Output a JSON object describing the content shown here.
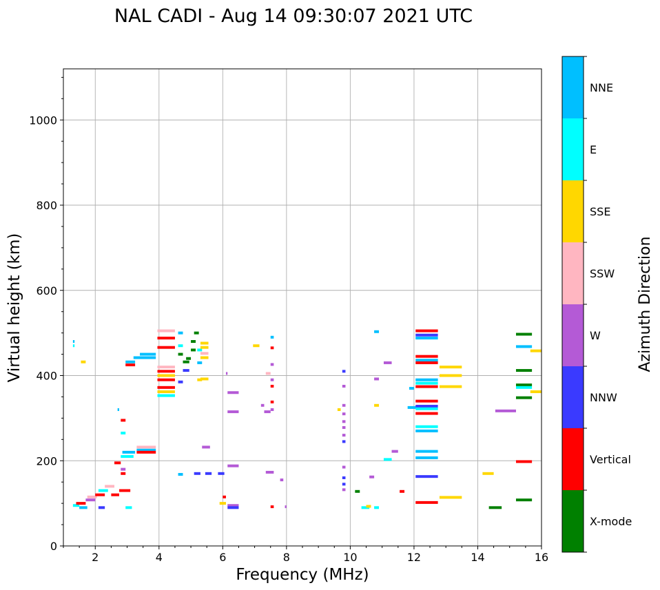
{
  "chart_data": {
    "type": "scatter",
    "title": "NAL CADI - Aug 14 09:30:07 2021 UTC",
    "xlabel": "Frequency (MHz)",
    "ylabel": "Virtual height (km)",
    "xlim": [
      1,
      16
    ],
    "ylim": [
      0,
      1120
    ],
    "x_ticks": [
      2,
      4,
      6,
      8,
      10,
      12,
      14,
      16
    ],
    "y_ticks": [
      0,
      200,
      400,
      600,
      800,
      1000
    ],
    "grid": true,
    "colorbar": {
      "label": "Azimuth Direction",
      "categories": [
        {
          "name": "X-mode",
          "color": "#008000"
        },
        {
          "name": "Vertical",
          "color": "#ff0000"
        },
        {
          "name": "NNW",
          "color": "#3a3aff"
        },
        {
          "name": "W",
          "color": "#b45ad6"
        },
        {
          "name": "SSW",
          "color": "#ffb6c1"
        },
        {
          "name": "SSE",
          "color": "#ffd700"
        },
        {
          "name": "E",
          "color": "#00ffff"
        },
        {
          "name": "NNE",
          "color": "#00bfff"
        }
      ]
    },
    "segments": [
      {
        "x0": 1.3,
        "x1": 1.35,
        "y": 480,
        "c": "NNE"
      },
      {
        "x0": 1.3,
        "x1": 1.35,
        "y": 470,
        "c": "E"
      },
      {
        "x0": 1.55,
        "x1": 1.7,
        "y": 432,
        "c": "SSE"
      },
      {
        "x0": 1.3,
        "x1": 1.5,
        "y": 95,
        "c": "E"
      },
      {
        "x0": 1.4,
        "x1": 1.7,
        "y": 100,
        "c": "Vertical"
      },
      {
        "x0": 1.5,
        "x1": 1.75,
        "y": 90,
        "c": "NNE"
      },
      {
        "x0": 1.7,
        "x1": 2.0,
        "y": 108,
        "c": "W"
      },
      {
        "x0": 1.75,
        "x1": 2.05,
        "y": 115,
        "c": "SSW"
      },
      {
        "x0": 2.0,
        "x1": 2.3,
        "y": 120,
        "c": "Vertical"
      },
      {
        "x0": 2.1,
        "x1": 2.4,
        "y": 130,
        "c": "E"
      },
      {
        "x0": 2.1,
        "x1": 2.3,
        "y": 90,
        "c": "NNW"
      },
      {
        "x0": 2.3,
        "x1": 2.6,
        "y": 140,
        "c": "SSW"
      },
      {
        "x0": 2.5,
        "x1": 2.75,
        "y": 120,
        "c": "Vertical"
      },
      {
        "x0": 2.6,
        "x1": 2.8,
        "y": 195,
        "c": "Vertical"
      },
      {
        "x0": 2.7,
        "x1": 2.75,
        "y": 320,
        "c": "NNE"
      },
      {
        "x0": 2.8,
        "x1": 2.95,
        "y": 295,
        "c": "Vertical"
      },
      {
        "x0": 2.8,
        "x1": 2.95,
        "y": 265,
        "c": "E"
      },
      {
        "x0": 2.8,
        "x1": 2.95,
        "y": 180,
        "c": "W"
      },
      {
        "x0": 2.8,
        "x1": 2.95,
        "y": 170,
        "c": "Vertical"
      },
      {
        "x0": 2.75,
        "x1": 3.1,
        "y": 130,
        "c": "Vertical"
      },
      {
        "x0": 2.95,
        "x1": 3.15,
        "y": 90,
        "c": "E"
      },
      {
        "x0": 2.8,
        "x1": 3.2,
        "y": 210,
        "c": "E"
      },
      {
        "x0": 2.85,
        "x1": 3.25,
        "y": 220,
        "c": "NNE"
      },
      {
        "x0": 3.3,
        "x1": 3.9,
        "y": 232,
        "c": "SSW"
      },
      {
        "x0": 3.3,
        "x1": 3.9,
        "y": 225,
        "c": "NNE"
      },
      {
        "x0": 3.3,
        "x1": 3.9,
        "y": 220,
        "c": "Vertical"
      },
      {
        "x0": 2.95,
        "x1": 3.25,
        "y": 432,
        "c": "NNE"
      },
      {
        "x0": 2.95,
        "x1": 3.25,
        "y": 425,
        "c": "Vertical"
      },
      {
        "x0": 3.4,
        "x1": 3.9,
        "y": 450,
        "c": "NNE"
      },
      {
        "x0": 3.2,
        "x1": 3.9,
        "y": 442,
        "c": "NNE"
      },
      {
        "x0": 3.95,
        "x1": 4.5,
        "y": 505,
        "c": "SSW"
      },
      {
        "x0": 3.95,
        "x1": 4.5,
        "y": 488,
        "c": "Vertical"
      },
      {
        "x0": 3.95,
        "x1": 4.5,
        "y": 466,
        "c": "Vertical"
      },
      {
        "x0": 3.95,
        "x1": 4.5,
        "y": 420,
        "c": "SSW"
      },
      {
        "x0": 3.95,
        "x1": 4.5,
        "y": 410,
        "c": "Vertical"
      },
      {
        "x0": 3.95,
        "x1": 4.5,
        "y": 400,
        "c": "SSE"
      },
      {
        "x0": 3.95,
        "x1": 4.5,
        "y": 390,
        "c": "Vertical"
      },
      {
        "x0": 3.95,
        "x1": 4.5,
        "y": 372,
        "c": "Vertical"
      },
      {
        "x0": 3.95,
        "x1": 4.5,
        "y": 362,
        "c": "SSE"
      },
      {
        "x0": 3.95,
        "x1": 4.5,
        "y": 353,
        "c": "E"
      },
      {
        "x0": 4.6,
        "x1": 4.75,
        "y": 500,
        "c": "NNE"
      },
      {
        "x0": 4.6,
        "x1": 4.75,
        "y": 470,
        "c": "E"
      },
      {
        "x0": 4.6,
        "x1": 4.75,
        "y": 450,
        "c": "X-mode"
      },
      {
        "x0": 4.6,
        "x1": 4.75,
        "y": 385,
        "c": "NNW"
      },
      {
        "x0": 4.6,
        "x1": 4.75,
        "y": 168,
        "c": "NNE"
      },
      {
        "x0": 4.75,
        "x1": 4.95,
        "y": 432,
        "c": "X-mode"
      },
      {
        "x0": 4.75,
        "x1": 4.95,
        "y": 412,
        "c": "NNW"
      },
      {
        "x0": 4.85,
        "x1": 5.0,
        "y": 440,
        "c": "X-mode"
      },
      {
        "x0": 5.0,
        "x1": 5.15,
        "y": 480,
        "c": "X-mode"
      },
      {
        "x0": 5.0,
        "x1": 5.15,
        "y": 460,
        "c": "X-mode"
      },
      {
        "x0": 5.1,
        "x1": 5.25,
        "y": 500,
        "c": "X-mode"
      },
      {
        "x0": 5.2,
        "x1": 5.35,
        "y": 460,
        "c": "E"
      },
      {
        "x0": 5.2,
        "x1": 5.35,
        "y": 430,
        "c": "NNE"
      },
      {
        "x0": 5.2,
        "x1": 5.35,
        "y": 390,
        "c": "SSE"
      },
      {
        "x0": 5.3,
        "x1": 5.55,
        "y": 476,
        "c": "SSE"
      },
      {
        "x0": 5.3,
        "x1": 5.55,
        "y": 466,
        "c": "SSE"
      },
      {
        "x0": 5.3,
        "x1": 5.55,
        "y": 452,
        "c": "SSW"
      },
      {
        "x0": 5.3,
        "x1": 5.55,
        "y": 442,
        "c": "SSE"
      },
      {
        "x0": 5.3,
        "x1": 5.55,
        "y": 392,
        "c": "SSE"
      },
      {
        "x0": 5.35,
        "x1": 5.6,
        "y": 232,
        "c": "W"
      },
      {
        "x0": 5.1,
        "x1": 5.3,
        "y": 170,
        "c": "NNW"
      },
      {
        "x0": 5.45,
        "x1": 5.65,
        "y": 170,
        "c": "NNW"
      },
      {
        "x0": 5.85,
        "x1": 6.05,
        "y": 170,
        "c": "NNW"
      },
      {
        "x0": 5.9,
        "x1": 6.1,
        "y": 100,
        "c": "SSE"
      },
      {
        "x0": 6.0,
        "x1": 6.1,
        "y": 115,
        "c": "Vertical"
      },
      {
        "x0": 6.15,
        "x1": 6.5,
        "y": 95,
        "c": "W"
      },
      {
        "x0": 6.15,
        "x1": 6.5,
        "y": 90,
        "c": "NNW"
      },
      {
        "x0": 6.15,
        "x1": 6.5,
        "y": 188,
        "c": "W"
      },
      {
        "x0": 6.15,
        "x1": 6.5,
        "y": 360,
        "c": "W"
      },
      {
        "x0": 6.15,
        "x1": 6.5,
        "y": 315,
        "c": "W"
      },
      {
        "x0": 6.1,
        "x1": 6.15,
        "y": 405,
        "c": "W"
      },
      {
        "x0": 6.95,
        "x1": 7.15,
        "y": 470,
        "c": "SSE"
      },
      {
        "x0": 7.2,
        "x1": 7.3,
        "y": 330,
        "c": "W"
      },
      {
        "x0": 7.35,
        "x1": 7.5,
        "y": 405,
        "c": "SSW"
      },
      {
        "x0": 7.35,
        "x1": 7.6,
        "y": 173,
        "c": "W"
      },
      {
        "x0": 7.3,
        "x1": 7.5,
        "y": 315,
        "c": "W"
      },
      {
        "x0": 7.5,
        "x1": 7.6,
        "y": 490,
        "c": "NNE"
      },
      {
        "x0": 7.5,
        "x1": 7.6,
        "y": 465,
        "c": "Vertical"
      },
      {
        "x0": 7.5,
        "x1": 7.6,
        "y": 426,
        "c": "W"
      },
      {
        "x0": 7.5,
        "x1": 7.6,
        "y": 390,
        "c": "W"
      },
      {
        "x0": 7.5,
        "x1": 7.6,
        "y": 375,
        "c": "Vertical"
      },
      {
        "x0": 7.5,
        "x1": 7.6,
        "y": 338,
        "c": "Vertical"
      },
      {
        "x0": 7.5,
        "x1": 7.6,
        "y": 320,
        "c": "W"
      },
      {
        "x0": 7.5,
        "x1": 7.6,
        "y": 92,
        "c": "Vertical"
      },
      {
        "x0": 7.8,
        "x1": 7.9,
        "y": 155,
        "c": "W"
      },
      {
        "x0": 7.95,
        "x1": 8.0,
        "y": 92,
        "c": "W"
      },
      {
        "x0": 9.6,
        "x1": 9.7,
        "y": 320,
        "c": "SSE"
      },
      {
        "x0": 9.75,
        "x1": 9.85,
        "y": 410,
        "c": "NNW"
      },
      {
        "x0": 9.75,
        "x1": 9.85,
        "y": 375,
        "c": "W"
      },
      {
        "x0": 9.75,
        "x1": 9.85,
        "y": 330,
        "c": "W"
      },
      {
        "x0": 9.75,
        "x1": 9.85,
        "y": 310,
        "c": "W"
      },
      {
        "x0": 9.75,
        "x1": 9.85,
        "y": 292,
        "c": "W"
      },
      {
        "x0": 9.75,
        "x1": 9.85,
        "y": 278,
        "c": "W"
      },
      {
        "x0": 9.75,
        "x1": 9.85,
        "y": 260,
        "c": "W"
      },
      {
        "x0": 9.75,
        "x1": 9.85,
        "y": 245,
        "c": "NNW"
      },
      {
        "x0": 9.75,
        "x1": 9.85,
        "y": 185,
        "c": "W"
      },
      {
        "x0": 9.75,
        "x1": 9.85,
        "y": 160,
        "c": "NNW"
      },
      {
        "x0": 9.75,
        "x1": 9.85,
        "y": 145,
        "c": "NNW"
      },
      {
        "x0": 9.75,
        "x1": 9.85,
        "y": 132,
        "c": "W"
      },
      {
        "x0": 10.15,
        "x1": 10.3,
        "y": 128,
        "c": "X-mode"
      },
      {
        "x0": 10.35,
        "x1": 10.6,
        "y": 90,
        "c": "E"
      },
      {
        "x0": 10.5,
        "x1": 10.65,
        "y": 93,
        "c": "SSE"
      },
      {
        "x0": 10.6,
        "x1": 10.75,
        "y": 162,
        "c": "W"
      },
      {
        "x0": 10.75,
        "x1": 10.9,
        "y": 90,
        "c": "E"
      },
      {
        "x0": 10.75,
        "x1": 10.9,
        "y": 330,
        "c": "SSE"
      },
      {
        "x0": 10.75,
        "x1": 10.9,
        "y": 392,
        "c": "W"
      },
      {
        "x0": 10.75,
        "x1": 10.9,
        "y": 503,
        "c": "NNE"
      },
      {
        "x0": 11.05,
        "x1": 11.3,
        "y": 430,
        "c": "W"
      },
      {
        "x0": 11.05,
        "x1": 11.3,
        "y": 203,
        "c": "E"
      },
      {
        "x0": 11.3,
        "x1": 11.5,
        "y": 222,
        "c": "W"
      },
      {
        "x0": 11.55,
        "x1": 11.7,
        "y": 128,
        "c": "Vertical"
      },
      {
        "x0": 11.85,
        "x1": 12.0,
        "y": 370,
        "c": "NNE"
      },
      {
        "x0": 11.8,
        "x1": 12.1,
        "y": 325,
        "c": "NNE"
      },
      {
        "x0": 12.05,
        "x1": 12.75,
        "y": 505,
        "c": "Vertical"
      },
      {
        "x0": 12.05,
        "x1": 12.75,
        "y": 495,
        "c": "NNW"
      },
      {
        "x0": 12.05,
        "x1": 12.75,
        "y": 488,
        "c": "NNE"
      },
      {
        "x0": 12.05,
        "x1": 12.75,
        "y": 445,
        "c": "Vertical"
      },
      {
        "x0": 12.05,
        "x1": 12.75,
        "y": 436,
        "c": "NNE"
      },
      {
        "x0": 12.05,
        "x1": 12.75,
        "y": 430,
        "c": "Vertical"
      },
      {
        "x0": 12.05,
        "x1": 12.75,
        "y": 390,
        "c": "NNE"
      },
      {
        "x0": 12.05,
        "x1": 12.75,
        "y": 382,
        "c": "E"
      },
      {
        "x0": 12.05,
        "x1": 12.75,
        "y": 374,
        "c": "Vertical"
      },
      {
        "x0": 12.05,
        "x1": 12.75,
        "y": 340,
        "c": "Vertical"
      },
      {
        "x0": 12.05,
        "x1": 12.75,
        "y": 328,
        "c": "NNW"
      },
      {
        "x0": 12.05,
        "x1": 12.75,
        "y": 322,
        "c": "E"
      },
      {
        "x0": 12.05,
        "x1": 12.75,
        "y": 311,
        "c": "Vertical"
      },
      {
        "x0": 12.05,
        "x1": 12.75,
        "y": 280,
        "c": "E"
      },
      {
        "x0": 12.05,
        "x1": 12.75,
        "y": 270,
        "c": "NNE"
      },
      {
        "x0": 12.05,
        "x1": 12.75,
        "y": 222,
        "c": "NNE"
      },
      {
        "x0": 12.05,
        "x1": 12.75,
        "y": 207,
        "c": "NNE"
      },
      {
        "x0": 12.05,
        "x1": 12.75,
        "y": 163,
        "c": "NNW"
      },
      {
        "x0": 12.05,
        "x1": 12.75,
        "y": 102,
        "c": "Vertical"
      },
      {
        "x0": 12.8,
        "x1": 13.5,
        "y": 420,
        "c": "SSE"
      },
      {
        "x0": 12.8,
        "x1": 13.5,
        "y": 400,
        "c": "SSE"
      },
      {
        "x0": 12.8,
        "x1": 13.5,
        "y": 374,
        "c": "SSE"
      },
      {
        "x0": 12.8,
        "x1": 13.5,
        "y": 114,
        "c": "SSE"
      },
      {
        "x0": 14.15,
        "x1": 14.5,
        "y": 170,
        "c": "SSE"
      },
      {
        "x0": 14.35,
        "x1": 14.75,
        "y": 90,
        "c": "X-mode"
      },
      {
        "x0": 14.55,
        "x1": 15.2,
        "y": 317,
        "c": "W"
      },
      {
        "x0": 15.2,
        "x1": 15.7,
        "y": 497,
        "c": "X-mode"
      },
      {
        "x0": 15.2,
        "x1": 15.7,
        "y": 468,
        "c": "NNE"
      },
      {
        "x0": 15.2,
        "x1": 15.7,
        "y": 412,
        "c": "X-mode"
      },
      {
        "x0": 15.2,
        "x1": 15.7,
        "y": 378,
        "c": "X-mode"
      },
      {
        "x0": 15.2,
        "x1": 15.7,
        "y": 372,
        "c": "E"
      },
      {
        "x0": 15.2,
        "x1": 15.7,
        "y": 348,
        "c": "X-mode"
      },
      {
        "x0": 15.2,
        "x1": 15.7,
        "y": 198,
        "c": "Vertical"
      },
      {
        "x0": 15.2,
        "x1": 15.7,
        "y": 108,
        "c": "X-mode"
      },
      {
        "x0": 15.65,
        "x1": 16.0,
        "y": 458,
        "c": "SSE"
      },
      {
        "x0": 15.65,
        "x1": 16.0,
        "y": 362,
        "c": "SSE"
      }
    ]
  }
}
